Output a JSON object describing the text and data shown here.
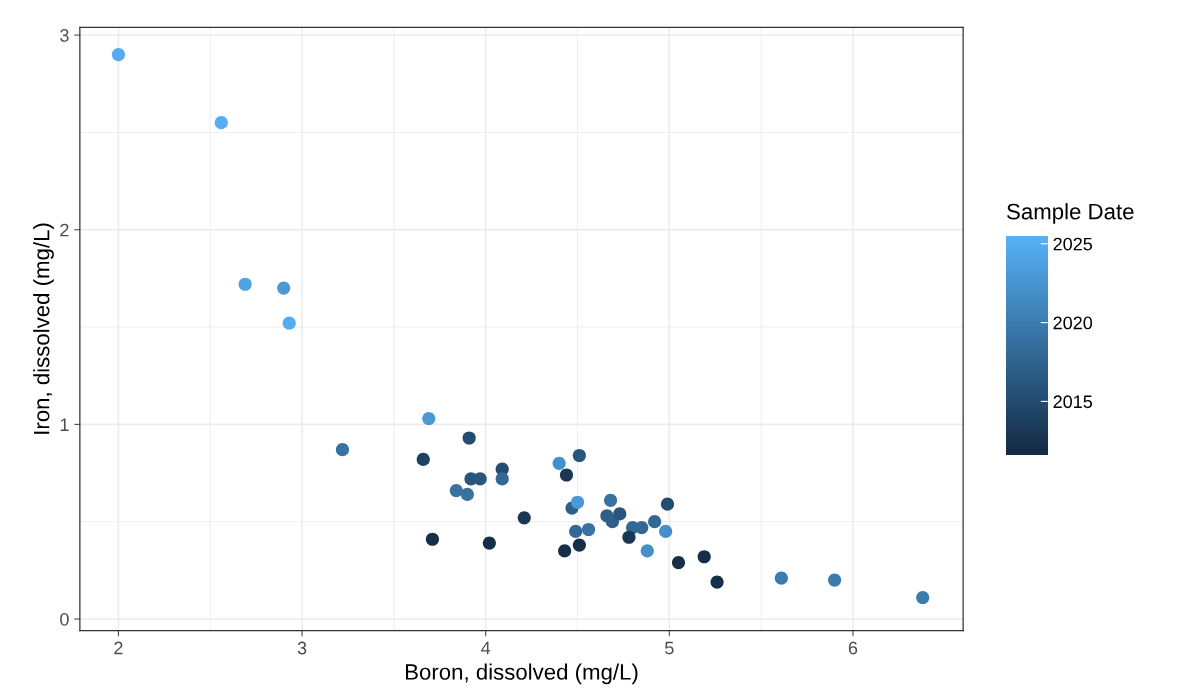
{
  "chart_data": {
    "type": "scatter",
    "xlabel": "Boron, dissolved (mg/L)",
    "ylabel": "Iron, dissolved (mg/L)",
    "clabel": "Sample Date",
    "xlim": [
      1.79,
      6.6
    ],
    "xticks": [
      2,
      3,
      4,
      5,
      6
    ],
    "ylim": [
      -0.06,
      3.04
    ],
    "yticks": [
      0,
      1,
      2,
      3
    ],
    "clim": [
      2011.6,
      2025.5
    ],
    "cticks": [
      2015,
      2020,
      2025
    ],
    "grid": true,
    "marker": "circle",
    "legend": false,
    "series": [
      {
        "x": [
          2.0,
          2.56,
          2.69,
          2.9,
          2.93,
          3.22,
          3.69,
          3.66,
          3.91,
          3.71,
          3.84,
          3.9,
          3.92,
          3.97,
          4.09,
          4.09,
          4.02,
          4.21,
          4.4,
          4.51,
          4.44,
          4.47,
          4.5,
          4.49,
          4.56,
          4.43,
          4.51,
          4.68,
          4.66,
          4.69,
          4.73,
          4.8,
          4.85,
          4.78,
          4.92,
          4.98,
          4.99,
          4.88,
          5.05,
          5.19,
          5.26,
          5.61,
          5.9,
          6.38
        ],
        "values": [
          2.9,
          2.55,
          1.72,
          1.7,
          1.52,
          0.87,
          1.03,
          0.82,
          0.93,
          0.41,
          0.66,
          0.64,
          0.72,
          0.72,
          0.77,
          0.72,
          0.39,
          0.52,
          0.8,
          0.84,
          0.74,
          0.57,
          0.6,
          0.45,
          0.46,
          0.35,
          0.38,
          0.61,
          0.53,
          0.5,
          0.54,
          0.47,
          0.47,
          0.42,
          0.5,
          0.45,
          0.59,
          0.35,
          0.29,
          0.32,
          0.19,
          0.21,
          0.2,
          0.11
        ],
        "cvalues": [
          2025,
          2025,
          2024,
          2023,
          2025,
          2019,
          2023,
          2014,
          2015,
          2012,
          2019,
          2019,
          2016,
          2016,
          2015,
          2018,
          2012,
          2013,
          2022,
          2016,
          2013,
          2017,
          2023,
          2018,
          2019,
          2012,
          2012,
          2019,
          2017,
          2017,
          2016,
          2018,
          2018,
          2013,
          2018,
          2022,
          2015,
          2022,
          2012,
          2012,
          2012,
          2020,
          2020,
          2020
        ]
      }
    ]
  }
}
